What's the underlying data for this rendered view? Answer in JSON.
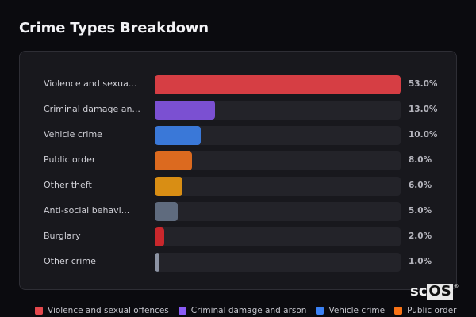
{
  "page": {
    "title": "Crime Types Breakdown"
  },
  "chart_data": {
    "type": "bar",
    "orientation": "horizontal",
    "title": "Crime Types Breakdown",
    "xlabel": "",
    "ylabel": "",
    "xlim": [
      0,
      53
    ],
    "grid": false,
    "legend_position": "bottom",
    "categories": [
      "Violence and sexual offences",
      "Criminal damage and arson",
      "Vehicle crime",
      "Public order",
      "Other theft",
      "Anti-social behaviour",
      "Burglary",
      "Other crime"
    ],
    "display_labels": [
      "Violence and sexua...",
      "Criminal damage an...",
      "Vehicle crime",
      "Public order",
      "Other theft",
      "Anti-social behavi...",
      "Burglary",
      "Other crime"
    ],
    "values": [
      53.0,
      13.0,
      10.0,
      8.0,
      6.0,
      5.0,
      2.0,
      1.0
    ],
    "value_labels": [
      "53.0%",
      "13.0%",
      "10.0%",
      "8.0%",
      "6.0%",
      "5.0%",
      "2.0%",
      "1.0%"
    ],
    "colors": [
      "#d63e44",
      "#7b50d2",
      "#3a78d8",
      "#dc6a1f",
      "#d98e14",
      "#5f6b7e",
      "#c9272c",
      "#8c93a3"
    ],
    "unit": "%"
  },
  "legend": [
    {
      "label": "Violence and sexual offences",
      "color": "#e5484d"
    },
    {
      "label": "Criminal damage and arson",
      "color": "#8b5cf6"
    },
    {
      "label": "Vehicle crime",
      "color": "#3b82f6"
    },
    {
      "label": "Public order",
      "color": "#f97316"
    }
  ],
  "watermark": {
    "left": "sc",
    "right": "OS",
    "mark": "®"
  }
}
